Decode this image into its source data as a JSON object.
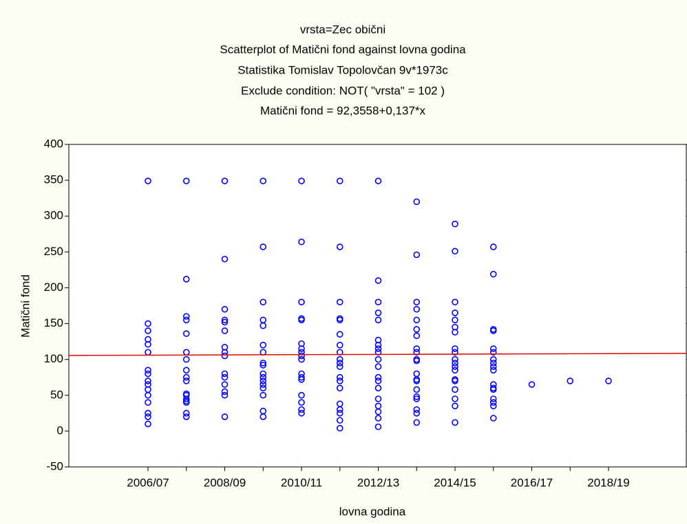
{
  "chart_data": {
    "type": "scatter",
    "titles": [
      "vrsta=Zec obični",
      "Scatterplot of Matični fond against lovna godina",
      "Statistika Tomislav Topolovčan 9v*1973c",
      "Exclude condition: NOT( \"vrsta\" = 102 )",
      "Matični fond = 92,3558+0,137*x"
    ],
    "x_label": "lovna godina",
    "y_label": "Matični fond",
    "categories": [
      "2006/07",
      null,
      "2008/09",
      null,
      "2010/11",
      null,
      "2012/13",
      null,
      "2014/15",
      null,
      "2016/17",
      null,
      "2018/19"
    ],
    "values": [
      [
        349,
        150,
        140,
        128,
        121,
        110,
        85,
        80,
        70,
        65,
        58,
        50,
        40,
        25,
        20,
        10
      ],
      [
        349,
        212,
        160,
        155,
        136,
        110,
        100,
        85,
        75,
        70,
        52,
        50,
        45,
        42,
        40,
        25,
        20
      ],
      [
        349,
        240,
        170,
        155,
        152,
        140,
        117,
        110,
        105,
        80,
        75,
        65,
        55,
        50,
        20
      ],
      [
        349,
        257,
        180,
        155,
        147,
        120,
        110,
        95,
        92,
        80,
        75,
        70,
        65,
        60,
        50,
        28,
        20
      ],
      [
        349,
        264,
        180,
        157,
        155,
        122,
        115,
        110,
        105,
        100,
        80,
        75,
        72,
        50,
        40,
        30,
        25
      ],
      [
        349,
        257,
        180,
        157,
        155,
        135,
        120,
        110,
        100,
        95,
        90,
        75,
        70,
        60,
        38,
        30,
        25,
        15,
        4
      ],
      [
        349,
        210,
        180,
        165,
        155,
        127,
        120,
        115,
        110,
        100,
        90,
        75,
        70,
        60,
        45,
        35,
        27,
        18,
        6
      ],
      [
        320,
        246,
        180,
        170,
        155,
        142,
        133,
        115,
        110,
        100,
        98,
        80,
        72,
        70,
        58,
        48,
        45,
        30,
        25,
        12
      ],
      [
        289,
        251,
        180,
        165,
        155,
        145,
        138,
        115,
        110,
        100,
        95,
        90,
        85,
        72,
        70,
        58,
        45,
        35,
        12
      ],
      [
        257,
        219,
        142,
        140,
        115,
        110,
        100,
        95,
        90,
        85,
        65,
        60,
        58,
        45,
        40,
        35,
        18
      ],
      [
        65
      ],
      [
        70
      ],
      [
        70
      ]
    ],
    "color": "#0000ff",
    "fit_line": {
      "y_start": 105.6,
      "y_end": 108.4,
      "color": "#e00000"
    },
    "ylim": [
      -50,
      400
    ],
    "yticks": [
      -50,
      0,
      50,
      100,
      150,
      200,
      250,
      300,
      350,
      400
    ]
  }
}
